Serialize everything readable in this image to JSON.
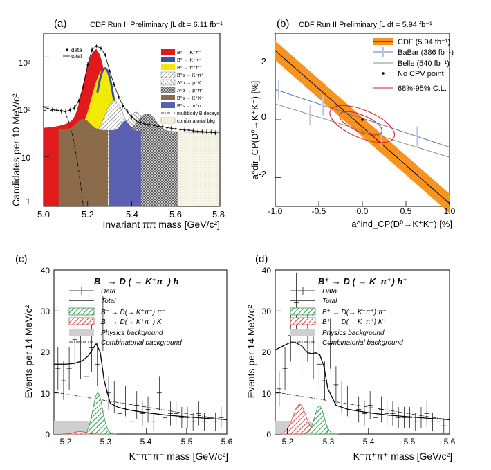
{
  "chart_data": [
    {
      "id": "a",
      "type": "line",
      "panel_label": "(a)",
      "header": "CDF Run II Preliminary ∫L dt = 6.11 fb⁻¹",
      "xlabel": "Invariant ππ mass [GeV/c²]",
      "ylabel": "Candidates per 10 MeV/c²",
      "xlim": [
        5.0,
        5.8
      ],
      "ylim": [
        1,
        3000
      ],
      "yscale": "log",
      "xticks": [
        "5.0",
        "5.2",
        "5.4",
        "5.6",
        "5.8"
      ],
      "yticks": [
        "1",
        "10",
        "10²",
        "10³"
      ],
      "legend_left": [
        "data",
        "total"
      ],
      "legend_right": [
        {
          "label": "B⁰ → K⁺π⁻",
          "color": "#e31a1c"
        },
        {
          "label": "B⁰ → K⁺K⁻",
          "color": "#3b4fa3"
        },
        {
          "label": "B⁰ → π⁺π⁻",
          "color": "#f2ea00"
        },
        {
          "label": "B⁰s → K⁻π⁺",
          "color": "#aaaaaa"
        },
        {
          "label": "Λ⁰b → p⁺K⁻",
          "color": "#999999"
        },
        {
          "label": "Λ⁰b → p⁺π⁻",
          "color": "#777777"
        },
        {
          "label": "B⁰s → K⁺K⁻",
          "color": "#8b6b4a"
        },
        {
          "label": "B⁰s → π⁺π⁻",
          "color": "#5b5fb0"
        },
        {
          "label": "multibody B decays",
          "color": "#000000"
        },
        {
          "label": "combinatorial bkg",
          "color": "#f3f0d9"
        }
      ],
      "data_points": {
        "x": [
          5.0,
          5.02,
          5.04,
          5.06,
          5.08,
          5.1,
          5.12,
          5.14,
          5.16,
          5.18,
          5.2,
          5.22,
          5.24,
          5.26,
          5.28,
          5.3,
          5.32,
          5.34,
          5.36,
          5.38,
          5.4,
          5.42,
          5.44,
          5.46,
          5.48,
          5.5,
          5.52,
          5.54,
          5.56,
          5.58,
          5.6,
          5.62,
          5.64,
          5.66,
          5.68,
          5.7,
          5.72,
          5.74,
          5.76,
          5.78
        ],
        "y": [
          100,
          92,
          88,
          85,
          82,
          80,
          86,
          95,
          130,
          250,
          700,
          1400,
          1650,
          1500,
          1100,
          520,
          280,
          160,
          105,
          80,
          62,
          52,
          48,
          45,
          44,
          42,
          40,
          40,
          38,
          37,
          36,
          35,
          34,
          34,
          33,
          32,
          32,
          31,
          31,
          30
        ]
      },
      "components": [
        {
          "name": "combinatorial bkg",
          "y0": 36,
          "y1": 30
        },
        {
          "name": "B⁰ → K⁺π⁻",
          "peak": 5.24,
          "height": 1300
        },
        {
          "name": "B⁰ → π⁺π⁻",
          "peak": 5.28,
          "height": 550
        },
        {
          "name": "B⁰ → K⁺K⁻",
          "peak": 5.28,
          "height": 550
        },
        {
          "name": "B⁰s → K⁻π⁺",
          "peak": 5.32,
          "height": 100
        },
        {
          "name": "Λ⁰b → p⁺π⁻",
          "peak": 5.42,
          "height": 45
        },
        {
          "name": "Λ⁰b → p⁺K⁻",
          "peak": 5.47,
          "height": 40
        },
        {
          "name": "B⁰s → K⁺K⁻",
          "peak": 5.18,
          "height": 22
        },
        {
          "name": "B⁰s → π⁺π⁻",
          "peak": 5.37,
          "height": 19
        }
      ]
    },
    {
      "id": "b",
      "type": "line",
      "panel_label": "(b)",
      "header": "CDF Run II Preliminary ∫L dt = 5.94 fb⁻¹",
      "xlabel": "a^ind_CP(D⁰→K⁺K⁻) [%]",
      "ylabel": "a^dir_CP(D⁰→K⁺K⁻) [%]",
      "xlim": [
        -1.0,
        1.0
      ],
      "ylim": [
        -3.0,
        3.0
      ],
      "xticks": [
        "-1.0",
        "-0.5",
        "0.0",
        "0.5",
        "1.0"
      ],
      "yticks": [
        "-2",
        "0",
        "2"
      ],
      "legend": [
        {
          "label": "CDF (5.94 fb⁻¹)",
          "color": "#f7931e"
        },
        {
          "label": "BaBar (386 fb⁻¹)",
          "color": "#5a78c8"
        },
        {
          "label": "Belle (540 fb⁻¹)",
          "color": "#888888"
        },
        {
          "label": "No CPV point",
          "color": "#000000"
        },
        {
          "label": "68%-95% C.L.",
          "color": "#d6202a"
        }
      ],
      "series": [
        {
          "name": "CDF",
          "x": [
            -1.0,
            1.0
          ],
          "y": [
            2.4,
            -2.9
          ]
        },
        {
          "name": "BaBar",
          "x": [
            -1.0,
            1.0
          ],
          "y": [
            1.05,
            -0.95
          ]
        },
        {
          "name": "Belle",
          "x": [
            -1.0,
            1.0
          ],
          "y": [
            0.55,
            -1.3
          ]
        }
      ],
      "ellipse_center": [
        -0.05,
        -0.05
      ]
    },
    {
      "id": "c",
      "type": "line",
      "panel_label": "(c)",
      "header": "B⁻ → D ( → K⁺π⁻) h⁻",
      "xlabel": "K⁺π⁻π⁻ mass [GeV/c²]",
      "ylabel": "Events per 14 MeV/c²",
      "xlim": [
        5.17,
        5.6
      ],
      "ylim": [
        0,
        40
      ],
      "xticks": [
        "5.2",
        "5.3",
        "5.4",
        "5.5",
        "5.6"
      ],
      "yticks": [
        "0",
        "10",
        "20",
        "30",
        "40"
      ],
      "legend": [
        "Data",
        "Total",
        "B⁻ → D(→ K⁺π⁻) π⁻",
        "B⁻ → D(→ K⁺π⁻) K⁻",
        "Physics background",
        "Combinatorial background"
      ],
      "data_points": {
        "x": [
          5.18,
          5.194,
          5.208,
          5.222,
          5.236,
          5.25,
          5.264,
          5.278,
          5.292,
          5.306,
          5.32,
          5.334,
          5.348,
          5.362,
          5.376,
          5.39,
          5.404,
          5.418,
          5.432,
          5.446,
          5.46,
          5.474,
          5.488,
          5.502,
          5.516,
          5.53,
          5.544,
          5.558,
          5.572,
          5.586
        ],
        "y": [
          16,
          13,
          16,
          23,
          19,
          14,
          21,
          17,
          27,
          10,
          9,
          5,
          8,
          3,
          7,
          5,
          6,
          3,
          10,
          4,
          5,
          5,
          4,
          4,
          3,
          5,
          3,
          4,
          3,
          4
        ]
      },
      "total": {
        "x": [
          5.17,
          5.2,
          5.22,
          5.24,
          5.255,
          5.265,
          5.275,
          5.285,
          5.295,
          5.31,
          5.33,
          5.36,
          5.4,
          5.45,
          5.5,
          5.55,
          5.6
        ],
        "y": [
          17,
          17,
          17.2,
          17.8,
          19,
          20.5,
          22,
          20,
          13,
          7.5,
          6.5,
          5.8,
          5.2,
          4.6,
          4.2,
          3.8,
          3.5
        ]
      },
      "combinatorial": {
        "x": [
          5.17,
          5.6
        ],
        "y": [
          10.2,
          3.4
        ]
      }
    },
    {
      "id": "d",
      "type": "line",
      "panel_label": "(d)",
      "header": "B⁺ → D ( → K⁻π⁺) h⁺",
      "xlabel": "K⁻π⁺π⁺ mass [GeV/c²]",
      "ylabel": "Events per 14 MeV/c²",
      "xlim": [
        5.17,
        5.6
      ],
      "ylim": [
        0,
        40
      ],
      "xticks": [
        "5.2",
        "5.3",
        "5.4",
        "5.5",
        "5.6"
      ],
      "yticks": [
        "0",
        "10",
        "20",
        "30",
        "40"
      ],
      "legend": [
        "Data",
        "Total",
        "B⁺ → D(→ K⁻π⁺) π⁺",
        "B⁺ → D(→ K⁻π⁺) K⁺",
        "Physics background",
        "Combinatorial background"
      ],
      "data_points": {
        "x": [
          5.18,
          5.194,
          5.208,
          5.222,
          5.236,
          5.25,
          5.264,
          5.278,
          5.292,
          5.306,
          5.32,
          5.334,
          5.348,
          5.362,
          5.376,
          5.39,
          5.404,
          5.418,
          5.432,
          5.446,
          5.46,
          5.474,
          5.488,
          5.502,
          5.516,
          5.53,
          5.544,
          5.558,
          5.572,
          5.586
        ],
        "y": [
          11,
          16,
          24,
          32,
          20,
          24,
          19,
          17,
          13,
          22,
          12,
          9,
          8,
          9,
          6,
          5,
          7,
          4,
          6,
          5,
          5,
          4,
          4,
          4,
          3,
          4,
          5,
          3,
          3,
          2
        ]
      },
      "total": {
        "x": [
          5.17,
          5.19,
          5.205,
          5.22,
          5.235,
          5.25,
          5.26,
          5.27,
          5.28,
          5.29,
          5.3,
          5.32,
          5.35,
          5.4,
          5.45,
          5.5,
          5.55,
          5.6
        ],
        "y": [
          20.5,
          21.5,
          22.2,
          22.3,
          21.5,
          19.8,
          19.6,
          19.8,
          19.3,
          16.5,
          11,
          7,
          6,
          5.2,
          4.6,
          4.2,
          3.8,
          3.5
        ]
      },
      "combinatorial": {
        "x": [
          5.17,
          5.6
        ],
        "y": [
          10.2,
          3.4
        ]
      }
    }
  ]
}
